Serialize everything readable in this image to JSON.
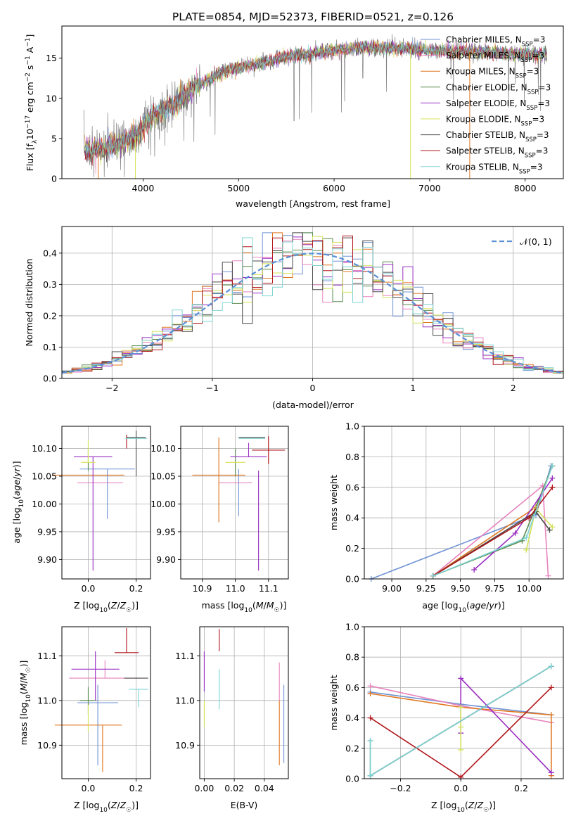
{
  "colors": {
    "chabrier_miles": "#6f93d4",
    "salpeter_miles": "#e882bd",
    "kroupa_miles": "#e0761e",
    "chabrier_elodie": "#5a8c4f",
    "salpeter_elodie": "#9a2fc2",
    "kroupa_elodie": "#d4e25a",
    "chabrier_stelib": "#4a4a4a",
    "salpeter_stelib": "#b0171b",
    "kroupa_stelib": "#7fd3d4",
    "data": "#808080",
    "normal": "#5b8fd6",
    "grid": "#b0b0b0"
  },
  "legend_labels": [
    "Chabrier MILES, N",
    "Salpeter MILES, N",
    "Kroupa MILES, N",
    "Chabrier ELODIE, N",
    "Salpeter ELODIE, N",
    "Kroupa ELODIE, N",
    "Chabrier STELIB, N",
    "Salpeter STELIB, N",
    "Kroupa STELIB, N"
  ],
  "legend_sub": "SSP",
  "legend_eq": "=3",
  "chart_data": [
    {
      "type": "line",
      "title": "PLATE=0854, MJD=52373, FIBERID=0521, z=0.126",
      "xlabel": "wavelength [Angstrom, rest frame]",
      "ylabel_parts": [
        "Flux [f",
        "λ",
        "10",
        "−17",
        " erg cm",
        "−2",
        " s",
        "−1",
        " A",
        "−1",
        "]"
      ],
      "xlim": [
        3150,
        8400
      ],
      "ylim": [
        0,
        19
      ],
      "xticks": [
        "4000",
        "5000",
        "6000",
        "7000",
        "8000"
      ],
      "yticks": [
        "0",
        "5",
        "10",
        "15"
      ],
      "spectrum_range": [
        3380,
        8230
      ],
      "continuum_knots": [
        [
          3380,
          3.5
        ],
        [
          3600,
          3.8
        ],
        [
          3800,
          4.6
        ],
        [
          3950,
          5.5
        ],
        [
          4100,
          8.0
        ],
        [
          4300,
          9.0
        ],
        [
          4500,
          11.0
        ],
        [
          4700,
          12.5
        ],
        [
          4900,
          13.6
        ],
        [
          5200,
          14.3
        ],
        [
          5500,
          15.2
        ],
        [
          5800,
          15.6
        ],
        [
          6200,
          16.3
        ],
        [
          6600,
          16.3
        ],
        [
          7000,
          16.0
        ],
        [
          7400,
          15.8
        ],
        [
          7800,
          15.6
        ],
        [
          8230,
          15.4
        ]
      ],
      "gaps": [
        [
          3530,
          2800,
          "kroupa_miles"
        ],
        [
          3920,
          2700,
          "kroupa_elodie"
        ],
        [
          6800,
          3000,
          "kroupa_elodie"
        ],
        [
          7420,
          3200,
          "kroupa_miles"
        ]
      ]
    },
    {
      "type": "step",
      "xlabel": "(data-model)/error",
      "ylabel": "Normed distribution",
      "xlim": [
        -2.5,
        2.5
      ],
      "ylim": [
        0,
        0.485
      ],
      "xticks": [
        "−2",
        "−1",
        "0",
        "1",
        "2"
      ],
      "yticks": [
        "0.0",
        "0.1",
        "0.2",
        "0.3",
        "0.4"
      ],
      "legend": "𝒩(0, 1)",
      "bin_width": 0.1
    },
    {
      "type": "errorbar",
      "xlabel": "Z [log10(Z/Z☉)]",
      "ylabel": "age  [log10(age/yr)]",
      "xlim": [
        -0.11,
        0.26
      ],
      "ylim": [
        9.865,
        10.14
      ],
      "xticks": [
        "0.0",
        "0.2"
      ],
      "yticks": [
        "9.90",
        "9.95",
        "10.00",
        "10.05",
        "10.10"
      ],
      "points": [
        {
          "c": "chabrier_miles",
          "x": 0.08,
          "y": 10.063,
          "xerr": 0.115,
          "yerr_lo": 0.09,
          "yerr_hi": 0.0
        },
        {
          "c": "salpeter_miles",
          "x": 0.05,
          "y": 10.038,
          "xerr": 0.095,
          "yerr_lo": 0.0,
          "yerr_hi": 0.0
        },
        {
          "c": "kroupa_miles",
          "x": 0.0,
          "y": 10.052,
          "xerr": 0.15,
          "yerr_lo": 0.0,
          "yerr_hi": 0.0
        },
        {
          "c": "chabrier_elodie",
          "x": 0.0,
          "y": 10.08,
          "xerr": 0.0,
          "yerr_lo": 0.02,
          "yerr_hi": 0.02
        },
        {
          "c": "salpeter_elodie",
          "x": 0.02,
          "y": 10.085,
          "xerr": 0.08,
          "yerr_lo": 0.205,
          "yerr_hi": 0.0
        },
        {
          "c": "kroupa_elodie",
          "x": 0.0,
          "y": 10.075,
          "xerr": 0.03,
          "yerr_lo": 0.0,
          "yerr_hi": 0.04
        },
        {
          "c": "chabrier_stelib",
          "x": 0.2,
          "y": 10.12,
          "xerr": 0.04,
          "yerr_lo": 0.07,
          "yerr_hi": 0.012
        },
        {
          "c": "salpeter_stelib",
          "x": 0.16,
          "y": 10.1,
          "xerr": 0.0,
          "yerr_lo": 0.0,
          "yerr_hi": 0.025
        },
        {
          "c": "kroupa_stelib",
          "x": 0.2,
          "y": 10.118,
          "xerr": 0.045,
          "yerr_lo": 0.0,
          "yerr_hi": 0.0
        }
      ]
    },
    {
      "type": "errorbar",
      "xlabel": "mass [log10(M/M☉)]",
      "xlim": [
        10.835,
        11.16
      ],
      "ylim": [
        9.865,
        10.14
      ],
      "xticks": [
        "10.9",
        "11.0",
        "11.1"
      ],
      "yticks": [
        "9.90",
        "9.95",
        "10.00",
        "10.05",
        "10.10"
      ]
    },
    {
      "type": "line",
      "xlabel": "age  [log10(age/yr)]",
      "ylabel": "mass weight",
      "xlim": [
        8.8,
        10.25
      ],
      "ylim": [
        0,
        1
      ],
      "xticks": [
        "9.00",
        "9.25",
        "9.50",
        "9.75",
        "10.00"
      ],
      "yticks": [
        "0.0",
        "0.2",
        "0.4",
        "0.6",
        "0.8",
        "1.0"
      ],
      "series": [
        {
          "c": "chabrier_miles",
          "x": [
            8.85,
            10.05,
            10.16
          ],
          "y": [
            0.0,
            0.42,
            0.74
          ]
        },
        {
          "c": "salpeter_miles",
          "x": [
            9.3,
            10.1,
            10.14
          ],
          "y": [
            0.02,
            0.61,
            0.02
          ]
        },
        {
          "c": "kroupa_miles",
          "x": [
            9.3,
            10.05,
            10.17
          ],
          "y": [
            0.02,
            0.47,
            0.74
          ]
        },
        {
          "c": "chabrier_elodie",
          "x": [
            9.3,
            9.95,
            10.17
          ],
          "y": [
            0.02,
            0.25,
            0.74
          ]
        },
        {
          "c": "salpeter_elodie",
          "x": [
            9.6,
            9.9,
            10.17
          ],
          "y": [
            0.06,
            0.3,
            0.66
          ]
        },
        {
          "c": "kroupa_elodie",
          "x": [
            9.98,
            10.05,
            10.17
          ],
          "y": [
            0.19,
            0.46,
            0.34
          ]
        },
        {
          "c": "chabrier_stelib",
          "x": [
            9.3,
            10.05,
            10.15
          ],
          "y": [
            0.02,
            0.44,
            0.32
          ]
        },
        {
          "c": "salpeter_stelib",
          "x": [
            9.3,
            10.0,
            10.17
          ],
          "y": [
            0.02,
            0.4,
            0.6
          ]
        },
        {
          "c": "kroupa_stelib",
          "x": [
            9.3,
            9.98,
            10.17
          ],
          "y": [
            0.02,
            0.27,
            0.74
          ]
        }
      ]
    },
    {
      "type": "errorbar",
      "xlabel": "Z [log10(Z/Z☉)]",
      "ylabel": "mass [log10(M/M☉)]",
      "xlim": [
        -0.11,
        0.26
      ],
      "ylim": [
        10.825,
        11.165
      ],
      "xticks": [
        "0.0",
        "0.2"
      ],
      "yticks": [
        "10.9",
        "11.0",
        "11.1"
      ]
    },
    {
      "type": "errorbar",
      "xlabel": "E(B-V)",
      "xlim": [
        -0.003,
        0.056
      ],
      "ylim": [
        10.825,
        11.165
      ],
      "xticks": [
        "0.00",
        "0.02",
        "0.04"
      ],
      "yticks": [
        "10.9",
        "11.0",
        "11.1"
      ]
    },
    {
      "type": "line",
      "xlabel": "Z [log10(Z/Z☉)]",
      "ylabel": "mass weight",
      "xlim": [
        -0.32,
        0.34
      ],
      "ylim": [
        0,
        1
      ],
      "xticks": [
        "−0.2",
        "0.0",
        "0.2"
      ],
      "yticks": [
        "0.0",
        "0.2",
        "0.4",
        "0.6",
        "0.8",
        "1.0"
      ],
      "series": [
        {
          "c": "chabrier_miles",
          "x": [
            -0.3,
            0.0,
            0.3
          ],
          "y": [
            0.57,
            0.49,
            0.42
          ]
        },
        {
          "c": "salpeter_miles",
          "x": [
            -0.3,
            0.0,
            0.3
          ],
          "y": [
            0.61,
            0.48,
            0.37
          ]
        },
        {
          "c": "kroupa_miles",
          "x": [
            -0.3,
            0.0,
            0.3,
            0.3
          ],
          "y": [
            0.56,
            0.47,
            0.42,
            0.02
          ]
        },
        {
          "c": "chabrier_elodie",
          "x": [
            -0.3,
            -0.3,
            0.3
          ],
          "y": [
            0.25,
            0.02,
            0.74
          ]
        },
        {
          "c": "salpeter_elodie",
          "x": [
            0.0,
            0.0,
            0.3,
            0.3
          ],
          "y": [
            0.3,
            0.66,
            0.04,
            0.04
          ]
        },
        {
          "c": "kroupa_elodie",
          "x": [
            0.0,
            0.0,
            0.0
          ],
          "y": [
            0.19,
            0.47,
            0.34
          ]
        },
        {
          "c": "chabrier_stelib",
          "x": [
            -0.3,
            0.3
          ],
          "y": [
            0.02,
            0.74
          ]
        },
        {
          "c": "salpeter_stelib",
          "x": [
            -0.3,
            0.0,
            0.3
          ],
          "y": [
            0.4,
            0.01,
            0.6
          ]
        },
        {
          "c": "kroupa_stelib",
          "x": [
            -0.3,
            -0.3,
            0.3
          ],
          "y": [
            0.25,
            0.02,
            0.74
          ]
        }
      ]
    }
  ]
}
